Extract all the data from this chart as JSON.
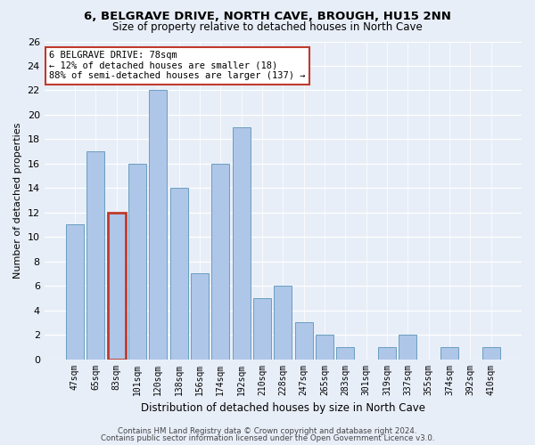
{
  "title1": "6, BELGRAVE DRIVE, NORTH CAVE, BROUGH, HU15 2NN",
  "title2": "Size of property relative to detached houses in North Cave",
  "xlabel": "Distribution of detached houses by size in North Cave",
  "ylabel": "Number of detached properties",
  "categories": [
    "47sqm",
    "65sqm",
    "83sqm",
    "101sqm",
    "120sqm",
    "138sqm",
    "156sqm",
    "174sqm",
    "192sqm",
    "210sqm",
    "228sqm",
    "247sqm",
    "265sqm",
    "283sqm",
    "301sqm",
    "319sqm",
    "337sqm",
    "355sqm",
    "374sqm",
    "392sqm",
    "410sqm"
  ],
  "values": [
    11,
    17,
    12,
    16,
    22,
    14,
    7,
    16,
    19,
    5,
    6,
    3,
    2,
    1,
    0,
    1,
    2,
    0,
    1,
    0,
    1
  ],
  "highlight_index": 2,
  "highlight_fill": "#aec6e8",
  "highlight_edge": "#c0392b",
  "bar_color": "#aec6e8",
  "bar_edge_color": "#6a9fc0",
  "annotation_text": "6 BELGRAVE DRIVE: 78sqm\n← 12% of detached houses are smaller (18)\n88% of semi-detached houses are larger (137) →",
  "annotation_box_color": "#ffffff",
  "annotation_box_edge": "#c0392b",
  "ylim": [
    0,
    26
  ],
  "yticks": [
    0,
    2,
    4,
    6,
    8,
    10,
    12,
    14,
    16,
    18,
    20,
    22,
    24,
    26
  ],
  "footer1": "Contains HM Land Registry data © Crown copyright and database right 2024.",
  "footer2": "Contains public sector information licensed under the Open Government Licence v3.0.",
  "background_color": "#e8eef8",
  "plot_background": "#e8eef8",
  "title1_fontsize": 9.5,
  "title2_fontsize": 8.5,
  "xlabel_fontsize": 8.5,
  "ylabel_fontsize": 8.0
}
